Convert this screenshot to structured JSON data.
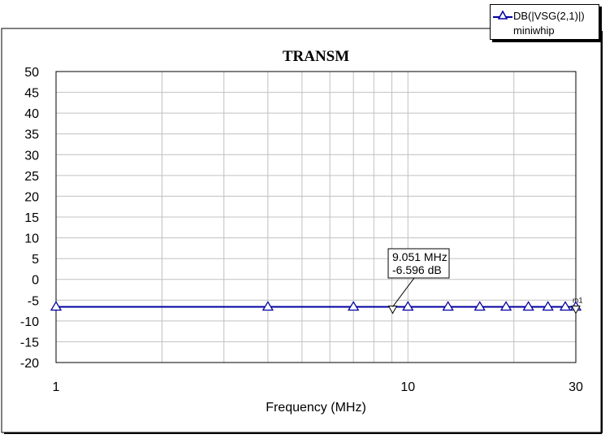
{
  "chart_data": {
    "type": "line",
    "title": "TRANSM",
    "xlabel": "Frequency (MHz)",
    "ylabel": "",
    "x_scale": "log",
    "xlim": [
      1,
      30
    ],
    "ylim": [
      -20,
      50
    ],
    "x_tick_labels": [
      "1",
      "10",
      "30"
    ],
    "y_ticks": [
      50,
      45,
      40,
      35,
      30,
      25,
      20,
      15,
      10,
      5,
      0,
      -5,
      -10,
      -15,
      -20
    ],
    "grid": true,
    "legend": {
      "placement": "top-right",
      "series_label": "DB(|VSG(2,1)|)",
      "source_label": "miniwhip"
    },
    "series": [
      {
        "name": "DB(|VSG(2,1)|)",
        "color": "#0000a0",
        "x": [
          1,
          4,
          7,
          10,
          13,
          16,
          19,
          22,
          25,
          28,
          30
        ],
        "y": [
          -6.6,
          -6.6,
          -6.6,
          -6.6,
          -6.6,
          -6.6,
          -6.6,
          -6.6,
          -6.6,
          -6.6,
          -6.6
        ]
      }
    ],
    "markers": [
      {
        "name": "m1",
        "x": 9.051,
        "y": -6.596,
        "label_freq": "9.051 MHz",
        "label_value": "-6.596 dB"
      },
      {
        "name": "m2",
        "x": 30,
        "y": -6.6,
        "label": "m1"
      }
    ]
  }
}
